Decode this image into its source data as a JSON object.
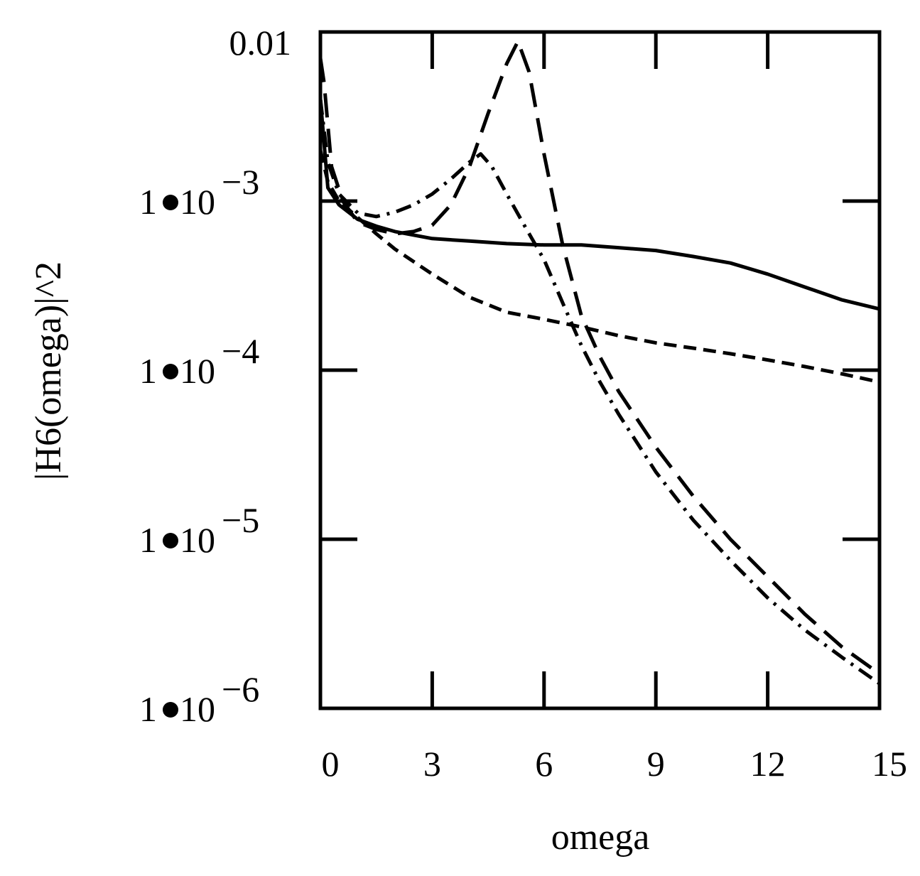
{
  "chart_data": {
    "type": "line",
    "title": "",
    "xlabel": "omega",
    "ylabel": "|H6(omega)|^2",
    "xlim": [
      0,
      15
    ],
    "ylim": [
      1e-06,
      0.01
    ],
    "yscale": "log",
    "x_ticks": [
      {
        "value": 0,
        "label": "0"
      },
      {
        "value": 3,
        "label": "3"
      },
      {
        "value": 6,
        "label": "6"
      },
      {
        "value": 9,
        "label": "9"
      },
      {
        "value": 12,
        "label": "12"
      },
      {
        "value": 15,
        "label": "15"
      }
    ],
    "y_ticks": [
      {
        "value": 0.01,
        "label": "0.01",
        "mantissa": "",
        "base": "",
        "exponent": ""
      },
      {
        "value": 0.001,
        "label": "",
        "mantissa": "1",
        "base": "10",
        "exponent": "−3"
      },
      {
        "value": 0.0001,
        "label": "",
        "mantissa": "1",
        "base": "10",
        "exponent": "−4"
      },
      {
        "value": 1e-05,
        "label": "",
        "mantissa": "1",
        "base": "10",
        "exponent": "−5"
      },
      {
        "value": 1e-06,
        "label": "",
        "mantissa": "1",
        "base": "10",
        "exponent": "−6"
      }
    ],
    "series": [
      {
        "name": "solid",
        "style": "solid",
        "color": "#000000",
        "x": [
          0,
          0.2,
          0.5,
          1.0,
          1.5,
          2.0,
          3.0,
          4.0,
          5.0,
          6.0,
          7.0,
          8.0,
          9.0,
          10.0,
          11.0,
          12.0,
          13.0,
          14.0,
          15.0
        ],
        "y": [
          0.004,
          0.0012,
          0.00095,
          0.00078,
          0.00071,
          0.00066,
          0.0006,
          0.00058,
          0.00056,
          0.00055,
          0.00055,
          0.00053,
          0.00051,
          0.00047,
          0.00043,
          0.00037,
          0.00031,
          0.00026,
          0.00023
        ]
      },
      {
        "name": "dashed",
        "style": "dashed",
        "color": "#000000",
        "x": [
          0,
          0.2,
          0.5,
          1.0,
          1.5,
          2.0,
          3.0,
          4.0,
          5.0,
          6.0,
          7.0,
          8.0,
          9.0,
          10.0,
          11.0,
          12.0,
          13.0,
          14.0,
          15.0
        ],
        "y": [
          0.002,
          0.0013,
          0.001,
          0.0008,
          0.00064,
          0.00052,
          0.00037,
          0.00027,
          0.00022,
          0.0002,
          0.00018,
          0.00016,
          0.000145,
          0.000135,
          0.000125,
          0.000115,
          0.000105,
          9.5e-05,
          8.5e-05
        ]
      },
      {
        "name": "dash-dot (peak near 4.3)",
        "style": "dashdot",
        "color": "#000000",
        "x": [
          0,
          0.2,
          0.5,
          1.0,
          1.5,
          2.0,
          2.5,
          3.0,
          3.5,
          4.0,
          4.3,
          4.6,
          5.0,
          5.5,
          6.0,
          6.5,
          7.0,
          7.5,
          8.0,
          9.0,
          10.0,
          11.0,
          12.0,
          13.0,
          14.0,
          15.0
        ],
        "y": [
          0.004,
          0.0017,
          0.0011,
          0.00085,
          0.00081,
          0.00086,
          0.00095,
          0.0011,
          0.00135,
          0.0017,
          0.0019,
          0.0016,
          0.0011,
          0.0007,
          0.00045,
          0.00025,
          0.00014,
          8.5e-05,
          5.5e-05,
          2.5e-05,
          1.3e-05,
          7.5e-06,
          4.5e-06,
          2.9e-06,
          2e-06,
          1.4e-06
        ]
      },
      {
        "name": "long dash (peak near 5.3)",
        "style": "longdash",
        "color": "#000000",
        "x": [
          0,
          0.1,
          0.3,
          0.6,
          1.0,
          1.5,
          2.0,
          2.5,
          3.0,
          3.5,
          4.0,
          4.5,
          5.0,
          5.3,
          5.6,
          6.0,
          6.5,
          7.0,
          7.5,
          8.0,
          9.0,
          10.0,
          11.0,
          12.0,
          13.0,
          14.0,
          15.0
        ],
        "y": [
          0.007,
          0.005,
          0.0016,
          0.001,
          0.00075,
          0.00068,
          0.00064,
          0.00066,
          0.00072,
          0.00095,
          0.0016,
          0.0033,
          0.0065,
          0.0088,
          0.0058,
          0.0019,
          0.00055,
          0.00021,
          0.00012,
          7.5e-05,
          3.5e-05,
          1.8e-05,
          1e-05,
          6e-06,
          3.6e-06,
          2.3e-06,
          1.6e-06
        ]
      }
    ]
  }
}
